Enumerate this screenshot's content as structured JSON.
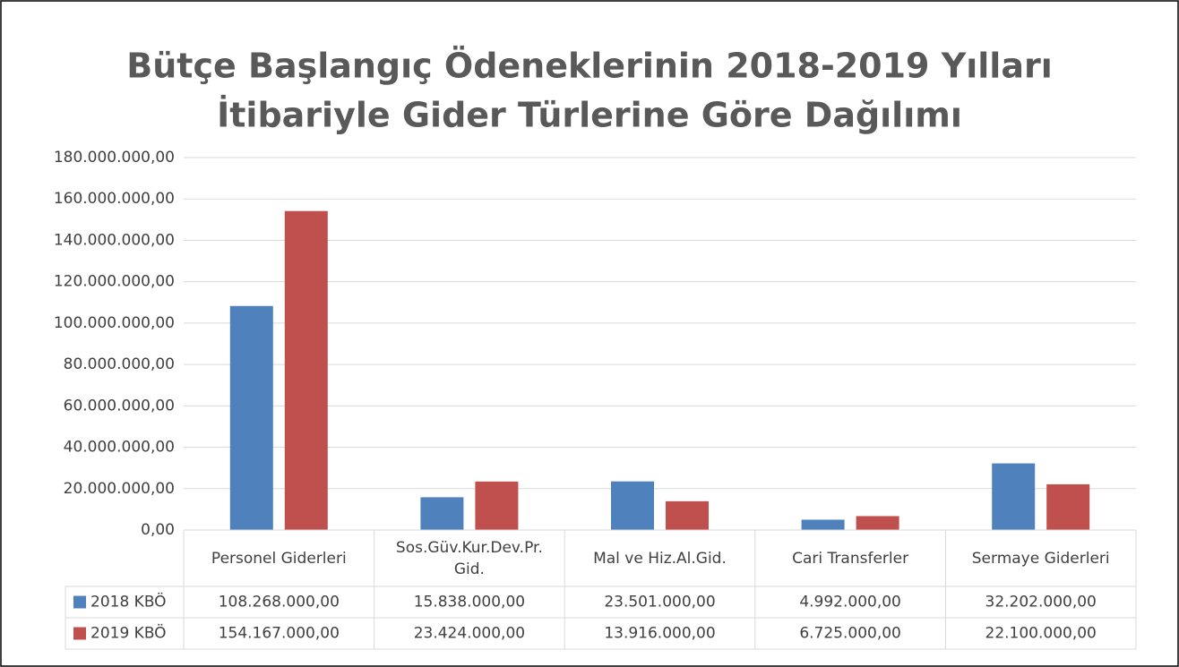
{
  "chart_data": {
    "type": "bar",
    "title": [
      "Bütçe Başlangıç Ödeneklerinin 2018-2019 Yılları",
      "İtibariyle Gider Türlerine Göre Dağılımı"
    ],
    "categories": [
      "Personel Giderleri",
      "Sos.Güv.Kur.Dev.Pr.Gid.",
      "Mal ve Hiz.Al.Gid.",
      "Cari Transferler",
      "Sermaye Giderleri"
    ],
    "series": [
      {
        "name": "2018 KBÖ",
        "color": "#4f81bd",
        "values": [
          108268000,
          15838000,
          23501000,
          4992000,
          32202000
        ],
        "value_labels": [
          "108.268.000,00",
          "15.838.000,00",
          "23.501.000,00",
          "4.992.000,00",
          "32.202.000,00"
        ]
      },
      {
        "name": "2019 KBÖ",
        "color": "#c0504d",
        "values": [
          154167000,
          23424000,
          13916000,
          6725000,
          22100000
        ],
        "value_labels": [
          "154.167.000,00",
          "23.424.000,00",
          "13.916.000,00",
          "6.725.000,00",
          "22.100.000,00"
        ]
      }
    ],
    "ylim": [
      0,
      180000000
    ],
    "yticks": [
      {
        "value": 0,
        "label": "0,00"
      },
      {
        "value": 20000000,
        "label": "20.000.000,00"
      },
      {
        "value": 40000000,
        "label": "40.000.000,00"
      },
      {
        "value": 60000000,
        "label": "60.000.000,00"
      },
      {
        "value": 80000000,
        "label": "80.000.000,00"
      },
      {
        "value": 100000000,
        "label": "100.000.000,00"
      },
      {
        "value": 120000000,
        "label": "120.000.000,00"
      },
      {
        "value": 140000000,
        "label": "140.000.000,00"
      },
      {
        "value": 160000000,
        "label": "160.000.000,00"
      },
      {
        "value": 180000000,
        "label": "180.000.000,00"
      }
    ],
    "grid": true
  }
}
